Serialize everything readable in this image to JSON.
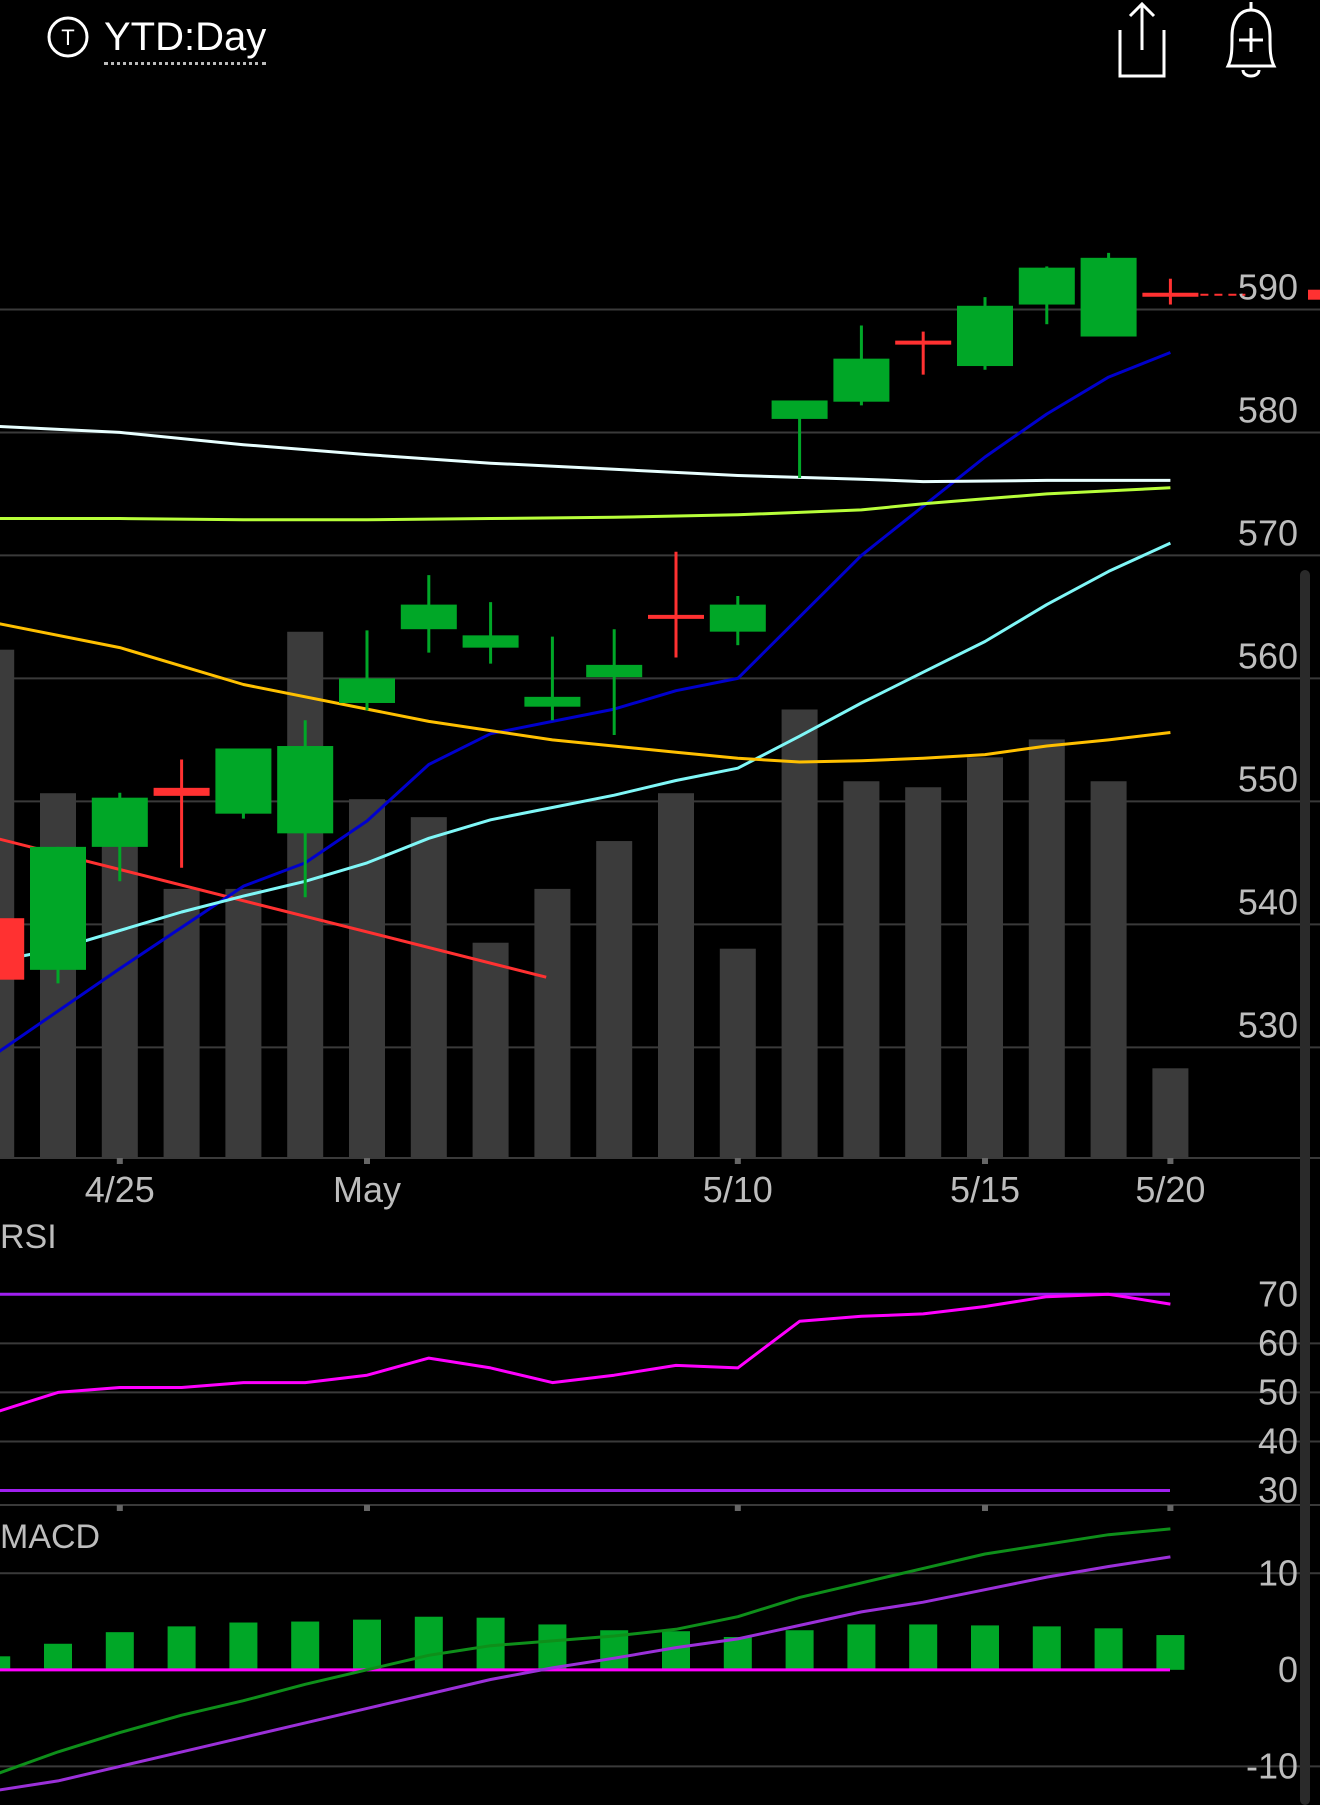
{
  "header": {
    "timeframe_label": "YTD:Day",
    "timeframe_icon": "t-circle-icon",
    "share_icon": "share-icon",
    "alert_icon": "bell-plus-icon"
  },
  "colors": {
    "up": "#00a727",
    "down": "#ff3131",
    "volume": "#3b3b3b",
    "grid": "#3a3a3a",
    "axis_text": "#bdbdbd",
    "rsi": "#ff00ff",
    "rsi_band": "#a020f0",
    "macd_line": "#0e8f1a",
    "signal_line": "#9b30d9",
    "macd_hist": "#00a727",
    "macd_zero": "#ff00ff"
  },
  "chart_data": [
    {
      "type": "candlestick",
      "title": "",
      "x_labels": [
        {
          "label": "4/25",
          "index": 1
        },
        {
          "label": "May",
          "index": 5
        },
        {
          "label": "5/10",
          "index": 11
        },
        {
          "label": "5/15",
          "index": 15
        },
        {
          "label": "5/20",
          "index": 18
        }
      ],
      "y_ticks": [
        530,
        540,
        550,
        560,
        570,
        580,
        590
      ],
      "ylim": [
        521,
        605
      ],
      "candles": [
        {
          "i": -1,
          "open": 540.5,
          "high": 540.5,
          "low": 535.5,
          "close": 535.5
        },
        {
          "i": 0,
          "open": 536.3,
          "high": 546.3,
          "low": 535.2,
          "close": 546.3
        },
        {
          "i": 1,
          "open": 546.3,
          "high": 550.7,
          "low": 543.5,
          "close": 550.3
        },
        {
          "i": 2,
          "open": 551.1,
          "high": 553.4,
          "low": 544.6,
          "close": 550.6
        },
        {
          "i": 3,
          "open": 549.0,
          "high": 554.3,
          "low": 548.6,
          "close": 554.3
        },
        {
          "i": 4,
          "open": 547.4,
          "high": 556.6,
          "low": 542.2,
          "close": 554.5
        },
        {
          "i": 5,
          "open": 558.0,
          "high": 563.9,
          "low": 557.4,
          "close": 560.0
        },
        {
          "i": 6,
          "open": 564.0,
          "high": 568.4,
          "low": 562.1,
          "close": 566.0
        },
        {
          "i": 7,
          "open": 562.5,
          "high": 566.2,
          "low": 561.2,
          "close": 563.5
        },
        {
          "i": 8,
          "open": 557.7,
          "high": 563.4,
          "low": 556.6,
          "close": 558.5
        },
        {
          "i": 9,
          "open": 560.1,
          "high": 564.0,
          "low": 555.4,
          "close": 561.1
        },
        {
          "i": 10,
          "open": 565.0,
          "high": 570.3,
          "low": 561.7,
          "close": 565.0
        },
        {
          "i": 11,
          "open": 563.8,
          "high": 566.7,
          "low": 562.7,
          "close": 566.0
        },
        {
          "i": 12,
          "open": 581.1,
          "high": 582.6,
          "low": 576.3,
          "close": 582.6
        },
        {
          "i": 13,
          "open": 582.5,
          "high": 588.7,
          "low": 582.2,
          "close": 586.0
        },
        {
          "i": 14,
          "open": 587.3,
          "high": 588.2,
          "low": 584.7,
          "close": 587.3
        },
        {
          "i": 15,
          "open": 585.4,
          "high": 591.0,
          "low": 585.1,
          "close": 590.3
        },
        {
          "i": 16,
          "open": 590.4,
          "high": 593.5,
          "low": 588.8,
          "close": 593.4
        },
        {
          "i": 17,
          "open": 587.8,
          "high": 594.6,
          "low": 587.8,
          "close": 594.2
        },
        {
          "i": 18,
          "open": 591.2,
          "high": 592.5,
          "low": 590.4,
          "close": 591.2
        }
      ],
      "volume_relative": [
        0.85,
        0.61,
        0.58,
        0.45,
        0.45,
        0.88,
        0.6,
        0.57,
        0.36,
        0.45,
        0.53,
        0.61,
        0.35,
        0.75,
        0.63,
        0.62,
        0.67,
        0.7,
        0.63,
        0.15
      ],
      "overlays": [
        {
          "color": "#ff3131",
          "points": [
            [
              -1,
              547.0
            ],
            [
              7.9,
              535.7
            ]
          ]
        },
        {
          "color": "#0000cc",
          "points": [
            [
              -1,
              529.5
            ],
            [
              1,
              536.4
            ],
            [
              3,
              543.1
            ],
            [
              4,
              545.0
            ],
            [
              5,
              548.4
            ],
            [
              6,
              553.0
            ],
            [
              7,
              555.5
            ],
            [
              8,
              556.5
            ],
            [
              9,
              557.5
            ],
            [
              10,
              559.0
            ],
            [
              11,
              560.0
            ],
            [
              12,
              565.0
            ],
            [
              13,
              570.0
            ],
            [
              14,
              574.0
            ],
            [
              15,
              578.0
            ],
            [
              16,
              581.5
            ],
            [
              17,
              584.5
            ],
            [
              18,
              586.5
            ]
          ]
        },
        {
          "color": "#7ff7f7",
          "points": [
            [
              -1,
              537.0
            ],
            [
              0,
              538.0
            ],
            [
              1,
              539.5
            ],
            [
              2,
              541.0
            ],
            [
              3,
              542.3
            ],
            [
              4,
              543.5
            ],
            [
              5,
              545.0
            ],
            [
              6,
              547.0
            ],
            [
              7,
              548.5
            ],
            [
              8,
              549.5
            ],
            [
              9,
              550.5
            ],
            [
              10,
              551.7
            ],
            [
              11,
              552.7
            ],
            [
              12,
              555.3
            ],
            [
              13,
              558.0
            ],
            [
              14,
              560.5
            ],
            [
              15,
              563.0
            ],
            [
              16,
              566.0
            ],
            [
              17,
              568.7
            ],
            [
              18,
              571.0
            ]
          ]
        },
        {
          "color": "#ffc000",
          "points": [
            [
              -1,
              564.5
            ],
            [
              1,
              562.5
            ],
            [
              3,
              559.5
            ],
            [
              5,
              557.5
            ],
            [
              6,
              556.5
            ],
            [
              8,
              555.0
            ],
            [
              10,
              554.0
            ],
            [
              11,
              553.5
            ],
            [
              12,
              553.2
            ],
            [
              13,
              553.3
            ],
            [
              14,
              553.5
            ],
            [
              15,
              553.8
            ],
            [
              16,
              554.5
            ],
            [
              17,
              555.0
            ],
            [
              18,
              555.6
            ]
          ]
        },
        {
          "color": "#e8ffff",
          "points": [
            [
              -1,
              580.5
            ],
            [
              1,
              580.0
            ],
            [
              3,
              579.0
            ],
            [
              5,
              578.2
            ],
            [
              7,
              577.5
            ],
            [
              9,
              577.0
            ],
            [
              11,
              576.5
            ],
            [
              13,
              576.2
            ],
            [
              14,
              576.0
            ],
            [
              16,
              576.1
            ],
            [
              18,
              576.1
            ]
          ]
        },
        {
          "color": "#b8ff3a",
          "points": [
            [
              -1,
              573.0
            ],
            [
              1,
              573.0
            ],
            [
              3,
              572.9
            ],
            [
              5,
              572.9
            ],
            [
              7,
              573.0
            ],
            [
              9,
              573.1
            ],
            [
              11,
              573.3
            ],
            [
              13,
              573.7
            ],
            [
              14,
              574.2
            ],
            [
              15,
              574.6
            ],
            [
              16,
              575.0
            ],
            [
              18,
              575.5
            ]
          ]
        }
      ],
      "last_price_marker": 591.2
    },
    {
      "type": "line",
      "title": "RSI",
      "y_ticks": [
        30,
        40,
        50,
        60,
        70
      ],
      "ylim": [
        24,
        78
      ],
      "bands": [
        70,
        30
      ],
      "values": [
        [
          -1,
          46.0
        ],
        [
          0,
          50.0
        ],
        [
          1,
          51.0
        ],
        [
          2,
          51.0
        ],
        [
          3,
          52.0
        ],
        [
          4,
          52.0
        ],
        [
          5,
          53.5
        ],
        [
          6,
          57.0
        ],
        [
          7,
          55.0
        ],
        [
          8,
          52.0
        ],
        [
          9,
          53.5
        ],
        [
          10,
          55.5
        ],
        [
          11,
          55.0
        ],
        [
          12,
          64.5
        ],
        [
          13,
          65.5
        ],
        [
          14,
          66.0
        ],
        [
          15,
          67.5
        ],
        [
          16,
          69.5
        ],
        [
          17,
          70.0
        ],
        [
          18,
          68.0
        ]
      ]
    },
    {
      "type": "bar",
      "title": "MACD",
      "y_ticks": [
        -10,
        0,
        10
      ],
      "ylim": [
        -14,
        15
      ],
      "histogram": [
        [
          -1,
          1.4
        ],
        [
          0,
          2.7
        ],
        [
          1,
          3.9
        ],
        [
          2,
          4.5
        ],
        [
          3,
          4.9
        ],
        [
          4,
          5.0
        ],
        [
          5,
          5.2
        ],
        [
          6,
          5.5
        ],
        [
          7,
          5.4
        ],
        [
          8,
          4.7
        ],
        [
          9,
          4.1
        ],
        [
          10,
          4.0
        ],
        [
          11,
          3.4
        ],
        [
          12,
          4.1
        ],
        [
          13,
          4.7
        ],
        [
          14,
          4.7
        ],
        [
          15,
          4.6
        ],
        [
          16,
          4.5
        ],
        [
          17,
          4.3
        ],
        [
          18,
          3.6
        ]
      ],
      "macd": [
        [
          -1,
          -10.8
        ],
        [
          0,
          -8.5
        ],
        [
          1,
          -6.5
        ],
        [
          2,
          -4.7
        ],
        [
          3,
          -3.2
        ],
        [
          4,
          -1.5
        ],
        [
          5,
          0.0
        ],
        [
          6,
          1.5
        ],
        [
          7,
          2.5
        ],
        [
          8,
          3.0
        ],
        [
          9,
          3.5
        ],
        [
          10,
          4.2
        ],
        [
          11,
          5.5
        ],
        [
          12,
          7.5
        ],
        [
          13,
          9.0
        ],
        [
          14,
          10.5
        ],
        [
          15,
          12.0
        ],
        [
          16,
          13.0
        ],
        [
          17,
          14.0
        ],
        [
          18,
          14.6
        ]
      ],
      "signal": [
        [
          -1,
          -12.5
        ],
        [
          0,
          -11.5
        ],
        [
          1,
          -10.0
        ],
        [
          2,
          -8.5
        ],
        [
          3,
          -7.0
        ],
        [
          4,
          -5.5
        ],
        [
          5,
          -4.0
        ],
        [
          6,
          -2.5
        ],
        [
          7,
          -1.0
        ],
        [
          8,
          0.2
        ],
        [
          9,
          1.2
        ],
        [
          10,
          2.3
        ],
        [
          11,
          3.2
        ],
        [
          12,
          4.6
        ],
        [
          13,
          6.0
        ],
        [
          14,
          7.0
        ],
        [
          15,
          8.3
        ],
        [
          16,
          9.6
        ],
        [
          17,
          10.7
        ],
        [
          18,
          11.7
        ]
      ]
    }
  ],
  "panels": {
    "rsi_label": "RSI",
    "macd_label": "MACD"
  }
}
